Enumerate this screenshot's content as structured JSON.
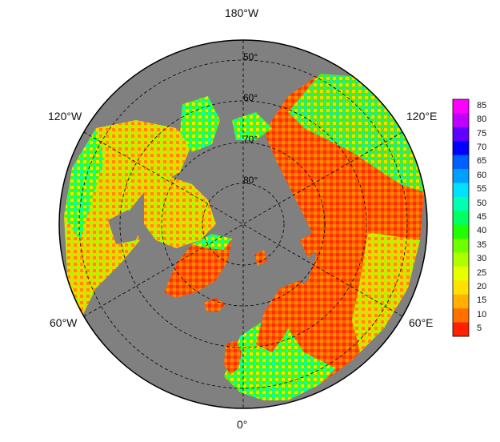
{
  "map": {
    "longitude_labels": [
      {
        "id": "lon-180w",
        "text": "180°W"
      },
      {
        "id": "lon-120w",
        "text": "120°W"
      },
      {
        "id": "lon-120e",
        "text": "120°E"
      },
      {
        "id": "lon-60w",
        "text": "60°W"
      },
      {
        "id": "lon-60e",
        "text": "60°E"
      },
      {
        "id": "lon-0",
        "text": "0°"
      }
    ],
    "latitude_labels": [
      "50°",
      "60°",
      "70°",
      "80°"
    ],
    "ocean_color": "#808080",
    "land_missing_color": "#808080",
    "colorbar": {
      "ticks": [
        "85",
        "80",
        "75",
        "70",
        "65",
        "60",
        "55",
        "50",
        "45",
        "40",
        "35",
        "30",
        "25",
        "20",
        "15",
        "10",
        "5"
      ],
      "colors": [
        "#ff00ff",
        "#c000ff",
        "#6000ff",
        "#0000ff",
        "#0060ff",
        "#00a0ff",
        "#00e0ff",
        "#00ffb0",
        "#00ff60",
        "#20ff00",
        "#70ff00",
        "#b0ff00",
        "#e8ff00",
        "#ffe000",
        "#ffb000",
        "#ff7000",
        "#ff2000"
      ]
    }
  }
}
